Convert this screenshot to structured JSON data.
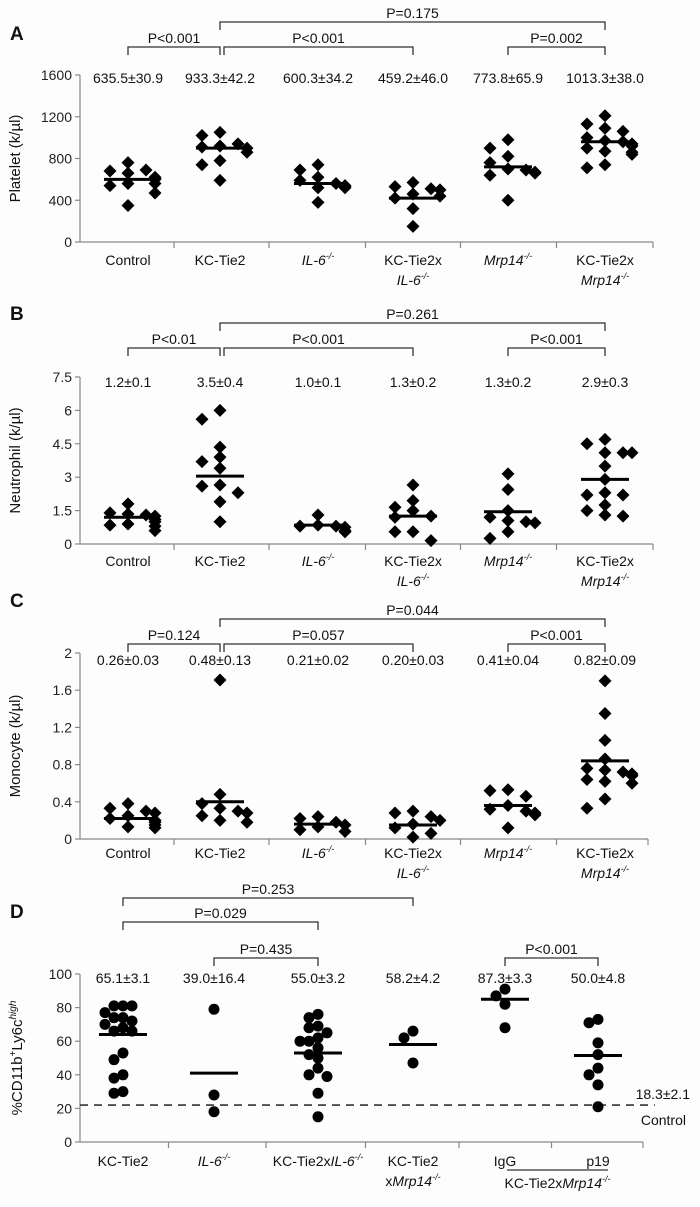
{
  "chart_data": [
    {
      "type": "scatter",
      "panel": "A",
      "ylabel": "Platelet (k/µl)",
      "ylim": [
        0,
        1600
      ],
      "yticks": [
        0,
        400,
        800,
        1200,
        1600
      ],
      "marker": "diamond",
      "categories": [
        {
          "line1": "Control",
          "line2": "",
          "italic1": false,
          "italic2": false,
          "sup1": "",
          "sup2": ""
        },
        {
          "line1": "KC-Tie2",
          "line2": "",
          "italic1": false,
          "italic2": false,
          "sup1": "",
          "sup2": ""
        },
        {
          "line1": "IL-6",
          "line2": "",
          "italic1": true,
          "italic2": false,
          "sup1": "-/-",
          "sup2": ""
        },
        {
          "line1": "KC-Tie2x",
          "line2": "IL-6",
          "italic1": false,
          "italic2": true,
          "sup1": "",
          "sup2": "-/-"
        },
        {
          "line1": "Mrp14",
          "line2": "",
          "italic1": true,
          "italic2": false,
          "sup1": "-/-",
          "sup2": ""
        },
        {
          "line1": "KC-Tie2x",
          "line2": "Mrp14",
          "italic1": false,
          "italic2": true,
          "sup1": "",
          "sup2": "-/-"
        }
      ],
      "stats": [
        "635.5±30.9",
        "933.3±42.2",
        "600.3±34.2",
        "459.2±46.0",
        "773.8±65.9",
        "1013.3±38.0"
      ],
      "means": [
        600,
        900,
        560,
        420,
        720,
        960
      ],
      "series": [
        {
          "name": "Control",
          "values": [
            760,
            680,
            660,
            690,
            620,
            600,
            610,
            560,
            540,
            560,
            470,
            350
          ]
        },
        {
          "name": "KC-Tie2",
          "values": [
            1050,
            1020,
            920,
            910,
            940,
            900,
            860,
            780,
            740,
            590
          ]
        },
        {
          "name": "IL-6-/-",
          "values": [
            740,
            690,
            620,
            590,
            560,
            540,
            520,
            530,
            520,
            380
          ]
        },
        {
          "name": "KC-Tie2xIL-6-/-",
          "values": [
            570,
            530,
            510,
            500,
            460,
            440,
            420,
            320,
            150
          ]
        },
        {
          "name": "Mrp14-/-",
          "values": [
            980,
            900,
            820,
            760,
            700,
            690,
            670,
            640,
            660,
            400
          ]
        },
        {
          "name": "KC-Tie2xMrp14-/-",
          "values": [
            1210,
            1130,
            1090,
            1060,
            1000,
            970,
            960,
            940,
            920,
            900,
            870,
            860,
            840,
            740,
            710
          ]
        }
      ],
      "comparisons": [
        {
          "label": "P<0.001",
          "from": 0,
          "to": 1,
          "level": 1
        },
        {
          "label": "P<0.001",
          "from": 1,
          "to": 3,
          "level": 1
        },
        {
          "label": "P=0.002",
          "from": 4,
          "to": 5,
          "level": 1
        },
        {
          "label": "P=0.175",
          "from": 1,
          "to": 5,
          "level": 2
        }
      ]
    },
    {
      "type": "scatter",
      "panel": "B",
      "ylabel": "Neutrophil (k/µl)",
      "ylim": [
        0,
        7.5
      ],
      "yticks": [
        0,
        1.5,
        3,
        4.5,
        6,
        7.5
      ],
      "ytick_labels": [
        "0",
        "1.5",
        "3",
        "4.5",
        "6",
        "7.5"
      ],
      "marker": "diamond",
      "categories": [
        {
          "line1": "Control",
          "line2": "",
          "italic1": false,
          "italic2": false,
          "sup1": "",
          "sup2": ""
        },
        {
          "line1": "KC-Tie2",
          "line2": "",
          "italic1": false,
          "italic2": false,
          "sup1": "",
          "sup2": ""
        },
        {
          "line1": "IL-6",
          "line2": "",
          "italic1": true,
          "italic2": false,
          "sup1": "-/-",
          "sup2": ""
        },
        {
          "line1": "KC-Tie2x",
          "line2": "IL-6",
          "italic1": false,
          "italic2": true,
          "sup1": "",
          "sup2": "-/-"
        },
        {
          "line1": "Mrp14",
          "line2": "",
          "italic1": true,
          "italic2": false,
          "sup1": "-/-",
          "sup2": ""
        },
        {
          "line1": "KC-Tie2x",
          "line2": "Mrp14",
          "italic1": false,
          "italic2": true,
          "sup1": "",
          "sup2": "-/-"
        }
      ],
      "stats": [
        "1.2±0.1",
        "3.5±0.4",
        "1.0±0.1",
        "1.3±0.2",
        "1.3±0.2",
        "2.9±0.3"
      ],
      "means": [
        1.2,
        3.05,
        0.85,
        1.25,
        1.45,
        2.9
      ],
      "series": [
        {
          "name": "Control",
          "values": [
            1.8,
            1.4,
            1.35,
            1.3,
            1.25,
            1.1,
            1.0,
            0.9,
            0.85,
            0.8,
            0.6
          ]
        },
        {
          "name": "KC-Tie2",
          "values": [
            6.0,
            5.6,
            4.35,
            3.9,
            3.7,
            3.4,
            2.65,
            2.6,
            2.3,
            1.9,
            1.0
          ]
        },
        {
          "name": "IL-6-/-",
          "values": [
            1.3,
            0.85,
            0.8,
            0.8,
            0.75,
            0.6,
            0.55,
            0.55
          ]
        },
        {
          "name": "KC-Tie2xIL-6-/-",
          "values": [
            2.65,
            1.95,
            1.65,
            1.5,
            1.25,
            1.2,
            0.55,
            0.55,
            0.15
          ]
        },
        {
          "name": "Mrp14-/-",
          "values": [
            3.15,
            2.45,
            1.5,
            1.2,
            1.05,
            1.0,
            0.95,
            0.55,
            0.25
          ]
        },
        {
          "name": "KC-Tie2xMrp14-/-",
          "values": [
            4.7,
            4.5,
            4.1,
            4.1,
            4.1,
            3.5,
            2.9,
            2.3,
            2.2,
            2.2,
            1.75,
            1.5,
            1.3,
            1.25
          ]
        }
      ],
      "comparisons": [
        {
          "label": "P<0.01",
          "from": 0,
          "to": 1,
          "level": 1
        },
        {
          "label": "P<0.001",
          "from": 1,
          "to": 3,
          "level": 1
        },
        {
          "label": "P<0.001",
          "from": 4,
          "to": 5,
          "level": 1
        },
        {
          "label": "P=0.261",
          "from": 1,
          "to": 5,
          "level": 2
        }
      ]
    },
    {
      "type": "scatter",
      "panel": "C",
      "ylabel": "Monocyte (k/µl)",
      "ylim": [
        0,
        2
      ],
      "yticks": [
        0,
        0.4,
        0.8,
        1.2,
        1.6,
        2
      ],
      "ytick_labels": [
        "0",
        "0.4",
        "0.8",
        "1.2",
        "1.6",
        "2"
      ],
      "marker": "diamond",
      "categories": [
        {
          "line1": "Control",
          "line2": "",
          "italic1": false,
          "italic2": false,
          "sup1": "",
          "sup2": ""
        },
        {
          "line1": "KC-Tie2",
          "line2": "",
          "italic1": false,
          "italic2": false,
          "sup1": "",
          "sup2": ""
        },
        {
          "line1": "IL-6",
          "line2": "",
          "italic1": true,
          "italic2": false,
          "sup1": "-/-",
          "sup2": ""
        },
        {
          "line1": "KC-Tie2x",
          "line2": "IL-6",
          "italic1": false,
          "italic2": true,
          "sup1": "",
          "sup2": "-/-"
        },
        {
          "line1": "Mrp14",
          "line2": "",
          "italic1": true,
          "italic2": false,
          "sup1": "-/-",
          "sup2": ""
        },
        {
          "line1": "KC-Tie2x",
          "line2": "Mrp14",
          "italic1": false,
          "italic2": true,
          "sup1": "",
          "sup2": "-/-"
        }
      ],
      "stats": [
        "0.26±0.03",
        "0.48±0.13",
        "0.21±0.02",
        "0.20±0.03",
        "0.41±0.04",
        "0.82±0.09"
      ],
      "means": [
        0.22,
        0.4,
        0.16,
        0.15,
        0.36,
        0.84
      ],
      "series": [
        {
          "name": "Control",
          "values": [
            0.38,
            0.33,
            0.3,
            0.28,
            0.25,
            0.22,
            0.2,
            0.18,
            0.15,
            0.13,
            0.12
          ]
        },
        {
          "name": "KC-Tie2",
          "values": [
            1.71,
            0.48,
            0.38,
            0.33,
            0.3,
            0.28,
            0.25,
            0.2,
            0.18
          ]
        },
        {
          "name": "IL-6-/-",
          "values": [
            0.24,
            0.22,
            0.18,
            0.15,
            0.13,
            0.1,
            0.08
          ]
        },
        {
          "name": "KC-Tie2xIL-6-/-",
          "values": [
            0.3,
            0.28,
            0.24,
            0.2,
            0.16,
            0.12,
            0.06,
            0.02
          ]
        },
        {
          "name": "Mrp14-/-",
          "values": [
            0.53,
            0.52,
            0.46,
            0.36,
            0.32,
            0.3,
            0.28,
            0.26,
            0.12
          ]
        },
        {
          "name": "KC-Tie2xMrp14-/-",
          "values": [
            1.7,
            1.35,
            1.06,
            0.86,
            0.76,
            0.74,
            0.72,
            0.7,
            0.68,
            0.64,
            0.62,
            0.6,
            0.43,
            0.33
          ]
        }
      ],
      "comparisons": [
        {
          "label": "P=0.124",
          "from": 0,
          "to": 1,
          "level": 1
        },
        {
          "label": "P=0.057",
          "from": 1,
          "to": 3,
          "level": 1
        },
        {
          "label": "P<0.001",
          "from": 4,
          "to": 5,
          "level": 1
        },
        {
          "label": "P=0.044",
          "from": 1,
          "to": 5,
          "level": 2
        }
      ]
    },
    {
      "type": "scatter",
      "panel": "D",
      "ylabel_main": "%CD11b",
      "ylabel_sup1": "+",
      "ylabel_mid": "Ly6c",
      "ylabel_sup2": "high",
      "ylim": [
        0,
        100
      ],
      "yticks": [
        0,
        20,
        40,
        60,
        80,
        100
      ],
      "ytick_labels": [
        "0",
        "20",
        "40",
        "60",
        "80",
        "100"
      ],
      "marker": "circle",
      "categories": [
        {
          "line1": "KC-Tie2",
          "line2": "",
          "italic1": false,
          "italic2": false,
          "sup1": "",
          "sup2": ""
        },
        {
          "line1": "IL-6",
          "line2": "",
          "italic1": true,
          "italic2": false,
          "sup1": "-/-",
          "sup2": ""
        },
        {
          "line1": "KC-Tie2x",
          "line1b": "IL-6",
          "line2": "",
          "italic1": false,
          "italic2": false,
          "sup1": "-/-",
          "sup2": ""
        },
        {
          "line1": "KC-Tie2",
          "line2": "xMrp14",
          "italic1": false,
          "italic2": true,
          "sup1": "",
          "sup2": "-/-"
        },
        {
          "line1": "IgG",
          "line2": "",
          "italic1": false,
          "italic2": false,
          "sup1": "",
          "sup2": ""
        },
        {
          "line1": "p19",
          "line2": "",
          "italic1": false,
          "italic2": false,
          "sup1": "",
          "sup2": ""
        }
      ],
      "group_label": {
        "prefix": "KC-Tie2x",
        "italic": "Mrp14",
        "sup": "-/-"
      },
      "stats": [
        "65.1±3.1",
        "39.0±16.4",
        "55.0±3.2",
        "58.2±4.2",
        "87.3±3.3",
        "50.0±4.8"
      ],
      "means": [
        64,
        41,
        53,
        58,
        85,
        51.5
      ],
      "series": [
        {
          "name": "KC-Tie2",
          "values": [
            81,
            81,
            81,
            77,
            74,
            74,
            72,
            70,
            68,
            66,
            66,
            53,
            49,
            40,
            38,
            30,
            29
          ]
        },
        {
          "name": "IL-6-/-",
          "values": [
            79,
            28,
            18
          ]
        },
        {
          "name": "KC-Tie2xIL-6-/-",
          "values": [
            76,
            74,
            69,
            68,
            65,
            62,
            60,
            60,
            56,
            52,
            50,
            44,
            40,
            39,
            29,
            15
          ]
        },
        {
          "name": "KC-Tie2xMrp14-/-",
          "values": [
            66,
            62,
            47
          ]
        },
        {
          "name": "IgG",
          "values": [
            91,
            87,
            82,
            68
          ]
        },
        {
          "name": "p19",
          "values": [
            73,
            71,
            59,
            52,
            44,
            40,
            34,
            21
          ]
        }
      ],
      "control_line": {
        "value": 22,
        "label_value": "18.3±2.1",
        "label_text": "Control"
      },
      "comparisons": [
        {
          "label": "P=0.435",
          "from": 1,
          "to": 2,
          "level": 1
        },
        {
          "label": "P<0.001",
          "from": 4,
          "to": 5,
          "level": 1
        },
        {
          "label": "P=0.029",
          "from": 0,
          "to": 2,
          "level": 2
        },
        {
          "label": "P=0.253",
          "from": 0,
          "to": 3,
          "level": 3
        }
      ]
    }
  ]
}
